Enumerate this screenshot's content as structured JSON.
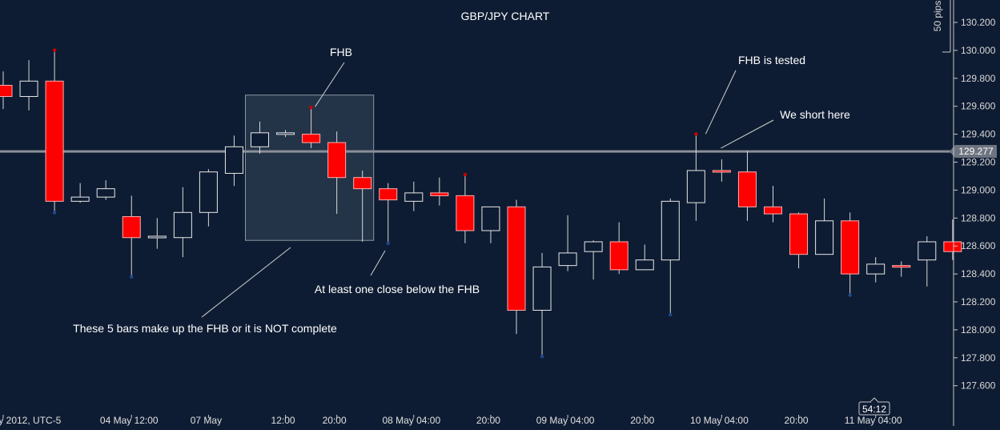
{
  "chart_data": {
    "type": "candlestick",
    "title": "GBP/JPY CHART",
    "symbol": "GBP/JPY",
    "timezone_label": "ay 2012, UTC-5",
    "y_ticks": [
      "130.200",
      "130.000",
      "129.800",
      "129.600",
      "129.400",
      "129.200",
      "129.000",
      "128.800",
      "128.600",
      "128.400",
      "128.200",
      "128.000",
      "127.800",
      "127.600"
    ],
    "y_tick_values": [
      130.2,
      130.0,
      129.8,
      129.6,
      129.4,
      129.2,
      129.0,
      128.8,
      128.6,
      128.4,
      128.2,
      128.0,
      127.8,
      127.6
    ],
    "ylim": [
      127.45,
      130.35
    ],
    "x_tick_labels": [
      "ay 2012, UTC-5",
      "04 May 12:00",
      "07 May",
      "12:00",
      "20:00",
      "08 May 04:00",
      "20:00",
      "09 May 04:00",
      "20:00",
      "10 May 04:00",
      "20:00",
      "11 May 04:00"
    ],
    "x_tick_bar_index": [
      0,
      5,
      8,
      11,
      13,
      16,
      19,
      22,
      25,
      28,
      31,
      34
    ],
    "horizontal_line": {
      "value": 129.277,
      "label": "129.277"
    },
    "scale_label": "50 pips",
    "countdown": "54:12",
    "colors": {
      "background": "#0e1c33",
      "bear": "#ff0000",
      "bull_outline": "#e8e8e8",
      "line": "#8a8f99",
      "high_marker": "#cc0000",
      "low_marker": "#1e4a8c"
    },
    "candles": [
      {
        "open": 129.75,
        "high": 129.85,
        "low": 129.58,
        "close": 129.67
      },
      {
        "open": 129.67,
        "high": 129.93,
        "low": 129.57,
        "close": 129.78
      },
      {
        "open": 129.78,
        "high": 129.99,
        "low": 128.85,
        "close": 128.92
      },
      {
        "open": 128.92,
        "high": 129.05,
        "low": 128.91,
        "close": 128.95
      },
      {
        "open": 128.95,
        "high": 129.07,
        "low": 128.93,
        "close": 129.01
      },
      {
        "open": 128.81,
        "high": 128.96,
        "low": 128.39,
        "close": 128.66
      },
      {
        "open": 128.66,
        "high": 128.8,
        "low": 128.58,
        "close": 128.67
      },
      {
        "open": 128.66,
        "high": 129.02,
        "low": 128.52,
        "close": 128.84
      },
      {
        "open": 128.84,
        "high": 129.15,
        "low": 128.74,
        "close": 129.13
      },
      {
        "open": 129.12,
        "high": 129.39,
        "low": 129.03,
        "close": 129.31
      },
      {
        "open": 129.31,
        "high": 129.49,
        "low": 129.26,
        "close": 129.41
      },
      {
        "open": 129.4,
        "high": 129.43,
        "low": 129.38,
        "close": 129.41
      },
      {
        "open": 129.4,
        "high": 129.58,
        "low": 129.3,
        "close": 129.34
      },
      {
        "open": 129.34,
        "high": 129.42,
        "low": 128.83,
        "close": 129.09
      },
      {
        "open": 129.09,
        "high": 129.14,
        "low": 128.63,
        "close": 129.01
      },
      {
        "open": 129.01,
        "high": 129.05,
        "low": 128.63,
        "close": 128.93
      },
      {
        "open": 128.92,
        "high": 129.06,
        "low": 128.85,
        "close": 128.98
      },
      {
        "open": 128.98,
        "high": 129.09,
        "low": 128.89,
        "close": 128.96
      },
      {
        "open": 128.96,
        "high": 129.1,
        "low": 128.62,
        "close": 128.71
      },
      {
        "open": 128.71,
        "high": 128.88,
        "low": 128.62,
        "close": 128.88
      },
      {
        "open": 128.88,
        "high": 128.93,
        "low": 127.97,
        "close": 128.14
      },
      {
        "open": 128.14,
        "high": 128.55,
        "low": 127.82,
        "close": 128.45
      },
      {
        "open": 128.46,
        "high": 128.82,
        "low": 128.42,
        "close": 128.55
      },
      {
        "open": 128.56,
        "high": 128.64,
        "low": 128.36,
        "close": 128.63
      },
      {
        "open": 128.63,
        "high": 128.77,
        "low": 128.4,
        "close": 128.43
      },
      {
        "open": 128.43,
        "high": 128.61,
        "low": 128.43,
        "close": 128.5
      },
      {
        "open": 128.5,
        "high": 128.94,
        "low": 128.12,
        "close": 128.92
      },
      {
        "open": 128.91,
        "high": 129.39,
        "low": 128.78,
        "close": 129.14
      },
      {
        "open": 129.14,
        "high": 129.22,
        "low": 129.06,
        "close": 129.13
      },
      {
        "open": 129.13,
        "high": 129.28,
        "low": 128.78,
        "close": 128.88
      },
      {
        "open": 128.88,
        "high": 129.03,
        "low": 128.77,
        "close": 128.83
      },
      {
        "open": 128.83,
        "high": 128.84,
        "low": 128.44,
        "close": 128.54
      },
      {
        "open": 128.54,
        "high": 128.94,
        "low": 128.54,
        "close": 128.78
      },
      {
        "open": 128.78,
        "high": 128.84,
        "low": 128.26,
        "close": 128.4
      },
      {
        "open": 128.4,
        "high": 128.52,
        "low": 128.34,
        "close": 128.47
      },
      {
        "open": 128.46,
        "high": 128.49,
        "low": 128.38,
        "close": 128.45
      },
      {
        "open": 128.5,
        "high": 128.67,
        "low": 128.31,
        "close": 128.63
      },
      {
        "open": 128.63,
        "high": 128.79,
        "low": 128.5,
        "close": 128.56
      }
    ],
    "high_markers": [
      2,
      12,
      18,
      27
    ],
    "low_markers": [
      2,
      5,
      15,
      21,
      26,
      33
    ],
    "fhb_box": {
      "first_bar": 10,
      "last_bar": 14,
      "top": 129.68,
      "bottom": 128.64
    },
    "annotations": [
      {
        "text": "FHB",
        "pointer_bar": 12
      },
      {
        "text": "FHB is tested",
        "pointer_bar": 27
      },
      {
        "text": "We short here",
        "pointer_bar": 28
      },
      {
        "text": "At least one close below the FHB",
        "pointer_bar": 15
      },
      {
        "text": "These 5 bars make up the FHB or it is NOT complete",
        "pointer_bar": 12
      }
    ]
  }
}
